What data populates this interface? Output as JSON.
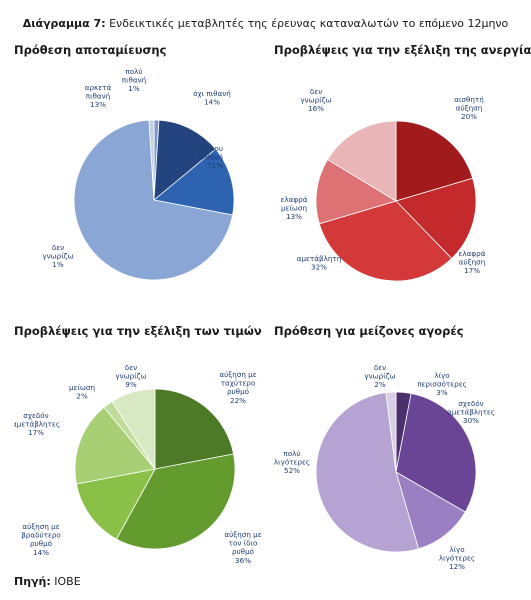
{
  "figure": {
    "label": "Διάγραμμα 7:",
    "title": "Ενδεικτικές μεταβλητές της έρευνας καταναλωτών το επόμενο 12μηνο"
  },
  "source": {
    "label": "Πηγή:",
    "value": "IOBE"
  },
  "chart_data": [
    {
      "type": "pie",
      "title": "Πρόθεση αποταμίευσης",
      "slices": [
        {
          "label": [
            "πολύ",
            "πιθανή"
          ],
          "value": 1,
          "pct": "1%",
          "color": "#7f9ac8"
        },
        {
          "label": [
            "αρκετά",
            "πιθανή"
          ],
          "value": 13,
          "pct": "13%",
          "color": "#24447f"
        },
        {
          "label": [
            "όχι πιθανή"
          ],
          "value": 14,
          "pct": "14%",
          "color": "#2e63b1"
        },
        {
          "label": [
            "καθόλου",
            "πιθανή"
          ],
          "value": 71,
          "pct": "71%",
          "color": "#8aa6d4"
        },
        {
          "label": [
            "δεν",
            "γνωρίζω"
          ],
          "value": 1,
          "pct": "1%",
          "color": "#c4cfe2"
        }
      ]
    },
    {
      "type": "pie",
      "title": "Προβλέψεις για την εξέλιξη της ανεργίας",
      "slices": [
        {
          "label": [
            "αισθητή",
            "αύξηση"
          ],
          "value": 20,
          "pct": "20%",
          "color": "#a11a1c"
        },
        {
          "label": [
            "ελαφρά",
            "αύξηση"
          ],
          "value": 17,
          "pct": "17%",
          "color": "#c42a2b"
        },
        {
          "label": [
            "αμετάβλητη"
          ],
          "value": 32,
          "pct": "32%",
          "color": "#d4393a"
        },
        {
          "label": [
            "ελαφρά",
            "μείωση"
          ],
          "value": 13,
          "pct": "13%",
          "color": "#de7173"
        },
        {
          "label": [
            "δεν",
            "γνωρίζω"
          ],
          "value": 16,
          "pct": "16%",
          "color": "#eab5b6"
        }
      ]
    },
    {
      "type": "pie",
      "title": "Προβλέψεις για την εξέλιξη των τιμών",
      "slices": [
        {
          "label": [
            "αύξηση με",
            "ταχύτερο",
            "ρυθμό"
          ],
          "value": 22,
          "pct": "22%",
          "color": "#4c7a26"
        },
        {
          "label": [
            "αύξηση με",
            "τον ίδιο",
            "ρυθμό"
          ],
          "value": 36,
          "pct": "36%",
          "color": "#639b2f"
        },
        {
          "label": [
            "αύξηση με",
            "βραδύτερο",
            "ρυθμό"
          ],
          "value": 14,
          "pct": "14%",
          "color": "#89c048"
        },
        {
          "label": [
            "σχεδόν",
            "αμετάβλητες"
          ],
          "value": 17,
          "pct": "17%",
          "color": "#a8cf74"
        },
        {
          "label": [
            "μείωση"
          ],
          "value": 2,
          "pct": "2%",
          "color": "#c0dc9a"
        },
        {
          "label": [
            "δεν",
            "γνωρίζω"
          ],
          "value": 9,
          "pct": "9%",
          "color": "#d8e8c3"
        }
      ]
    },
    {
      "type": "pie",
      "title": "Πρόθεση για μείζονες αγορές",
      "slices": [
        {
          "label": [
            "λίγο",
            "περισσότερες"
          ],
          "value": 3,
          "pct": "3%",
          "color": "#4c306e"
        },
        {
          "label": [
            "σχεδόν",
            "αμετάβλητες"
          ],
          "value": 30,
          "pct": "30%",
          "color": "#6a4596"
        },
        {
          "label": [
            "λίγο",
            "λιγότερες"
          ],
          "value": 12,
          "pct": "12%",
          "color": "#9b7fc3"
        },
        {
          "label": [
            "πολύ",
            "λιγότερες"
          ],
          "value": 52,
          "pct": "52%",
          "color": "#b5a3d4"
        },
        {
          "label": [
            "δεν",
            "γνωρίζω"
          ],
          "value": 2,
          "pct": "2%",
          "color": "#d8cfe6"
        }
      ]
    }
  ]
}
